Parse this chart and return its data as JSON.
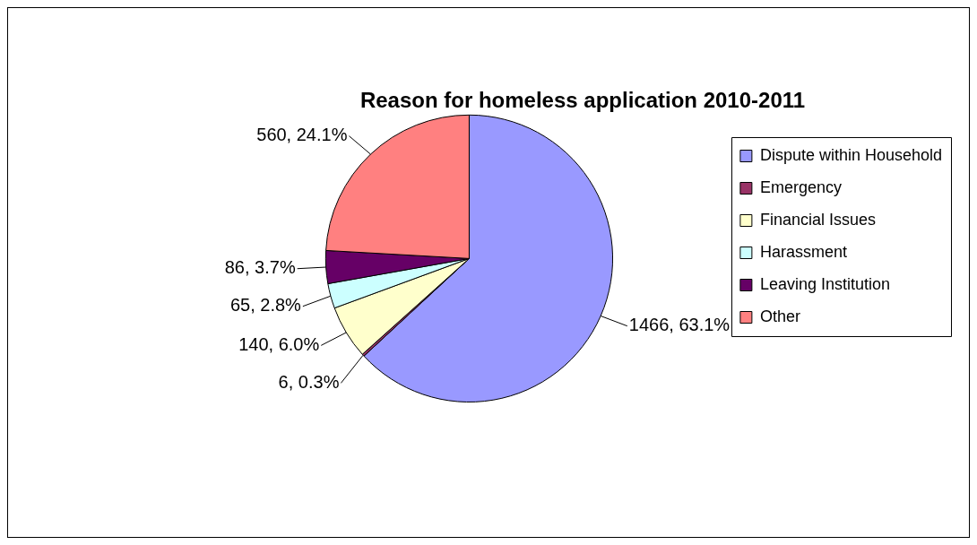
{
  "chart_data": {
    "type": "pie",
    "title": "Reason for homeless application 2010-2011",
    "categories": [
      "Dispute within Household",
      "Emergency",
      "Financial Issues",
      "Harassment",
      "Leaving Institution",
      "Other"
    ],
    "values": [
      1466,
      6,
      140,
      65,
      86,
      560
    ],
    "colors": [
      "#9999ff",
      "#993366",
      "#ffffcc",
      "#ccffff",
      "#660066",
      "#ff8080"
    ],
    "value_labels": [
      "1466, 63.1%",
      "6, 0.3%",
      "140, 6.0%",
      "65, 2.8%",
      "86, 3.7%",
      "560, 24.1%"
    ],
    "legend": "right"
  }
}
